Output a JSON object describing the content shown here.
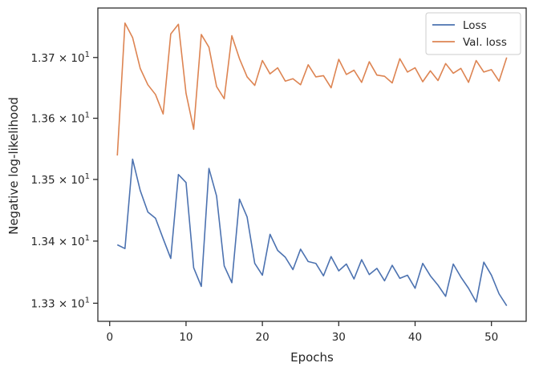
{
  "chart_data": {
    "type": "line",
    "xlabel": "Epochs",
    "ylabel": "Negative log-likelihood",
    "xlim": [
      -1.55,
      54.55
    ],
    "ylim": [
      13.271,
      13.782
    ],
    "yscale": "log",
    "grid": false,
    "legend_position": "top-right",
    "x_ticks": [
      0,
      10,
      20,
      30,
      40,
      50
    ],
    "x_tick_labels": [
      "0",
      "10",
      "20",
      "30",
      "40",
      "50"
    ],
    "y_ticks": [
      13.3,
      13.4,
      13.5,
      13.6,
      13.7
    ],
    "y_tick_labels": [
      {
        "mantissa": "1.33",
        "base": "10",
        "exp": "1"
      },
      {
        "mantissa": "1.34",
        "base": "10",
        "exp": "1"
      },
      {
        "mantissa": "1.35",
        "base": "10",
        "exp": "1"
      },
      {
        "mantissa": "1.36",
        "base": "10",
        "exp": "1"
      },
      {
        "mantissa": "1.37",
        "base": "10",
        "exp": "1"
      }
    ],
    "x": [
      1,
      2,
      3,
      4,
      5,
      6,
      7,
      8,
      9,
      10,
      11,
      12,
      13,
      14,
      15,
      16,
      17,
      18,
      19,
      20,
      21,
      22,
      23,
      24,
      25,
      26,
      27,
      28,
      29,
      30,
      31,
      32,
      33,
      34,
      35,
      36,
      37,
      38,
      39,
      40,
      41,
      42,
      43,
      44,
      45,
      46,
      47,
      48,
      49,
      50,
      51,
      52
    ],
    "series": [
      {
        "name": "Loss",
        "color": "#4c72b0",
        "values": [
          13.394,
          13.388,
          13.533,
          13.482,
          13.447,
          13.437,
          13.404,
          13.372,
          13.508,
          13.495,
          13.357,
          13.327,
          13.518,
          13.473,
          13.36,
          13.333,
          13.468,
          13.439,
          13.364,
          13.345,
          13.411,
          13.385,
          13.374,
          13.354,
          13.387,
          13.367,
          13.364,
          13.344,
          13.375,
          13.352,
          13.363,
          13.339,
          13.37,
          13.346,
          13.356,
          13.336,
          13.361,
          13.34,
          13.345,
          13.324,
          13.364,
          13.344,
          13.329,
          13.311,
          13.363,
          13.342,
          13.324,
          13.302,
          13.366,
          13.345,
          13.315,
          13.296
        ]
      },
      {
        "name": "Val. loss",
        "color": "#dd8452",
        "values": [
          13.539,
          13.757,
          13.733,
          13.682,
          13.655,
          13.639,
          13.607,
          13.739,
          13.755,
          13.641,
          13.582,
          13.738,
          13.717,
          13.652,
          13.632,
          13.736,
          13.698,
          13.668,
          13.654,
          13.695,
          13.673,
          13.683,
          13.661,
          13.665,
          13.655,
          13.688,
          13.668,
          13.67,
          13.65,
          13.697,
          13.672,
          13.679,
          13.659,
          13.693,
          13.671,
          13.669,
          13.658,
          13.698,
          13.676,
          13.683,
          13.66,
          13.678,
          13.662,
          13.69,
          13.674,
          13.682,
          13.659,
          13.695,
          13.676,
          13.68,
          13.661,
          13.7
        ]
      }
    ]
  }
}
